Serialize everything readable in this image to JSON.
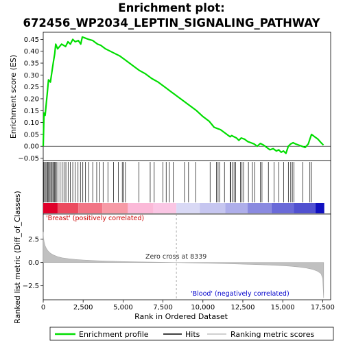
{
  "chart_data": {
    "type": "line",
    "title_line1": "Enrichment plot:",
    "title_line2": "672456_WP2034_LEPTIN_SIGNALING_PATHWAY",
    "top_panel": {
      "ylabel": "Enrichment score (ES)",
      "ylim": [
        -0.06,
        0.48
      ],
      "y_ticks": [
        -0.05,
        0.0,
        0.05,
        0.1,
        0.15,
        0.2,
        0.25,
        0.3,
        0.35,
        0.4,
        0.45
      ],
      "y_tick_labels": [
        "−0.05",
        "0.00",
        "0.05",
        "0.10",
        "0.15",
        "0.20",
        "0.25",
        "0.30",
        "0.35",
        "0.40",
        "0.45"
      ],
      "series_color": "#00dd00",
      "es_profile": {
        "x": [
          0,
          50,
          120,
          250,
          330,
          450,
          560,
          650,
          720,
          780,
          900,
          1150,
          1400,
          1550,
          1700,
          1850,
          2000,
          2200,
          2350,
          2450,
          2650,
          2850,
          3100,
          3400,
          3600,
          3900,
          4200,
          4500,
          4800,
          5000,
          5100,
          5300,
          5600,
          6000,
          6400,
          6800,
          7200,
          7600,
          8000,
          8400,
          8800,
          9200,
          9600,
          10000,
          10400,
          10700,
          10900,
          11100,
          11300,
          11500,
          11700,
          11800,
          11950,
          12100,
          12250,
          12400,
          12600,
          12800,
          13000,
          13200,
          13400,
          13600,
          13800,
          14000,
          14200,
          14400,
          14600,
          14750,
          14900,
          15050,
          15200,
          15350,
          15500,
          15650,
          15800,
          16000,
          16200,
          16400,
          16600,
          16700,
          16800,
          17000,
          17200,
          17400,
          17550
        ],
        "y": [
          0.0,
          0.14,
          0.13,
          0.22,
          0.28,
          0.27,
          0.32,
          0.36,
          0.39,
          0.43,
          0.41,
          0.43,
          0.42,
          0.44,
          0.43,
          0.45,
          0.44,
          0.445,
          0.43,
          0.46,
          0.455,
          0.45,
          0.445,
          0.43,
          0.425,
          0.41,
          0.4,
          0.39,
          0.38,
          0.37,
          0.365,
          0.355,
          0.34,
          0.32,
          0.305,
          0.285,
          0.27,
          0.25,
          0.23,
          0.21,
          0.19,
          0.17,
          0.15,
          0.125,
          0.105,
          0.08,
          0.075,
          0.07,
          0.06,
          0.05,
          0.04,
          0.045,
          0.04,
          0.035,
          0.025,
          0.035,
          0.03,
          0.02,
          0.015,
          0.01,
          0.0,
          0.012,
          0.005,
          -0.005,
          -0.015,
          -0.01,
          -0.02,
          -0.015,
          -0.025,
          -0.02,
          -0.03,
          0.0,
          0.01,
          0.015,
          0.01,
          0.005,
          0.0,
          -0.005,
          0.01,
          0.03,
          0.05,
          0.04,
          0.03,
          0.015,
          0.005
        ]
      }
    },
    "hits_panel": {
      "hit_positions": [
        40,
        110,
        170,
        230,
        290,
        340,
        390,
        470,
        540,
        600,
        660,
        700,
        760,
        820,
        930,
        1050,
        1180,
        1300,
        1420,
        1560,
        1700,
        1850,
        2000,
        2180,
        2330,
        2480,
        2650,
        2850,
        3100,
        3350,
        3550,
        3750,
        4050,
        4400,
        4700,
        4950,
        5050,
        5150,
        6000,
        6700,
        6950,
        7500,
        7700,
        7900,
        8150,
        8850,
        9100,
        9550,
        10450,
        10850,
        10950,
        11050,
        11350,
        11700,
        11750,
        11850,
        11950,
        12050,
        12350,
        12450,
        12550,
        12850,
        13100,
        13250,
        13600,
        13700,
        14100,
        14450,
        14750,
        15050,
        15350,
        15500,
        15600,
        15700,
        16250,
        16700,
        16800
      ],
      "ranked_bar": {
        "segments": [
          {
            "from": 0,
            "to": 900,
            "color": "#e0002a"
          },
          {
            "from": 900,
            "to": 2200,
            "color": "#ec4b5f"
          },
          {
            "from": 2200,
            "to": 3700,
            "color": "#f27585"
          },
          {
            "from": 3700,
            "to": 5300,
            "color": "#f79aa6"
          },
          {
            "from": 5300,
            "to": 6900,
            "color": "#fbb9d8"
          },
          {
            "from": 6900,
            "to": 8339,
            "color": "#fac6e4"
          },
          {
            "from": 8339,
            "to": 9800,
            "color": "#d9d9f5"
          },
          {
            "from": 9800,
            "to": 11400,
            "color": "#c6c6f0"
          },
          {
            "from": 11400,
            "to": 12800,
            "color": "#aeaeea"
          },
          {
            "from": 12800,
            "to": 14300,
            "color": "#8a8ae0"
          },
          {
            "from": 14300,
            "to": 15700,
            "color": "#6a6ad8"
          },
          {
            "from": 15700,
            "to": 17050,
            "color": "#5151d0"
          },
          {
            "from": 17050,
            "to": 17600,
            "color": "#1010c0"
          }
        ]
      }
    },
    "metric_panel": {
      "ylabel": "Ranked list metric (Diff_of_Classes)",
      "ylim": [
        -4.0,
        5.2
      ],
      "y_ticks": [
        -2.5,
        0.0,
        2.5
      ],
      "y_tick_labels": [
        "−2.5",
        "0.0",
        "2.5"
      ],
      "fill_color": "#c0c0c0",
      "metric_curve": {
        "x": [
          0,
          20,
          60,
          120,
          200,
          300,
          450,
          650,
          900,
          1200,
          1600,
          2000,
          2500,
          3000,
          3500,
          4000,
          5000,
          6000,
          7000,
          8000,
          8339,
          9000,
          10000,
          11000,
          12000,
          13000,
          14000,
          15000,
          15500,
          16000,
          16500,
          16900,
          17200,
          17400,
          17500,
          17560
        ],
        "y": [
          3.3,
          2.6,
          2.2,
          1.8,
          1.5,
          1.25,
          1.0,
          0.8,
          0.62,
          0.5,
          0.4,
          0.33,
          0.27,
          0.22,
          0.18,
          0.15,
          0.1,
          0.06,
          0.03,
          0.01,
          0.0,
          -0.03,
          -0.07,
          -0.11,
          -0.15,
          -0.2,
          -0.26,
          -0.34,
          -0.4,
          -0.48,
          -0.6,
          -0.75,
          -0.95,
          -1.2,
          -1.7,
          -3.8
        ]
      },
      "annotations": {
        "positive": "'Breast' (positively correlated)",
        "zero_cross": "Zero cross at 8339",
        "negative": "'Blood' (negatively correlated)"
      },
      "zero_cross": 8339
    },
    "x_axis": {
      "label": "Rank in Ordered Dataset",
      "xlim": [
        0,
        18000
      ],
      "ticks": [
        0,
        2500,
        5000,
        7500,
        10000,
        12500,
        15000,
        17500
      ],
      "tick_labels": [
        "0",
        "2,500",
        "5,000",
        "7,500",
        "10,000",
        "12,500",
        "15,000",
        "17,500"
      ]
    },
    "legend": {
      "items": [
        {
          "label": "Enrichment profile",
          "color": "#00dd00"
        },
        {
          "label": "Hits",
          "color": "#000000"
        },
        {
          "label": "Ranking metric scores",
          "color": "#c0c0c0"
        }
      ]
    }
  }
}
